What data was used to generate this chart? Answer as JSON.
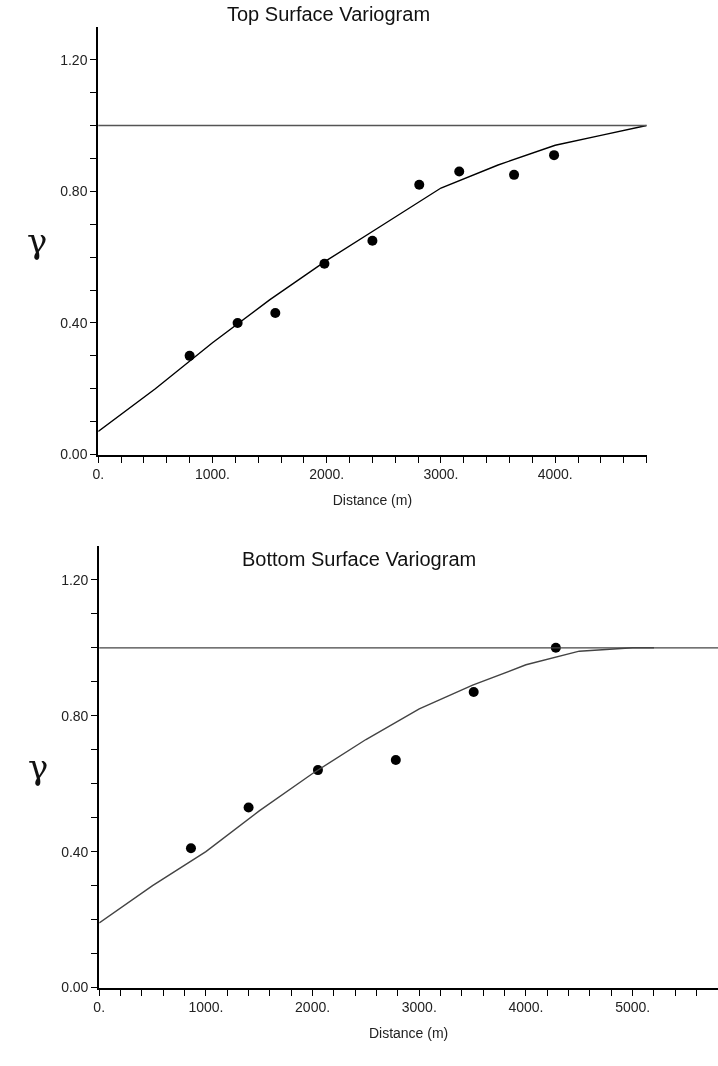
{
  "chart_data": [
    {
      "type": "scatter",
      "title": "Top Surface Variogram",
      "xlabel": "Distance (m)",
      "ylabel": "γ",
      "series": [
        {
          "color": "#000000",
          "marker": "circle",
          "x": [
            800,
            1220,
            1550,
            1980,
            2400,
            2810,
            3160,
            3640,
            3990
          ],
          "values": [
            0.3,
            0.4,
            0.43,
            0.58,
            0.65,
            0.82,
            0.86,
            0.85,
            0.91
          ]
        },
        {
          "type": "line",
          "color": "#000000",
          "marker": "none",
          "line_style": "solid",
          "x": [
            0,
            500,
            1000,
            1500,
            2000,
            2500,
            3000,
            3500,
            4000,
            4400,
            4800
          ],
          "values": [
            0.07,
            0.2,
            0.34,
            0.47,
            0.59,
            0.7,
            0.81,
            0.88,
            0.94,
            0.97,
            1.0
          ]
        }
      ],
      "ref_lines": [
        {
          "axis": "y",
          "value": 1.0,
          "color": "#555555"
        }
      ],
      "xlim": [
        0,
        4800
      ],
      "ylim": [
        0,
        1.3
      ],
      "xticks": [
        {
          "value": 0,
          "label": "0."
        },
        {
          "value": 200,
          "label": null
        },
        {
          "value": 400,
          "label": null
        },
        {
          "value": 600,
          "label": null
        },
        {
          "value": 800,
          "label": null
        },
        {
          "value": 1000,
          "label": "1000."
        },
        {
          "value": 1200,
          "label": null
        },
        {
          "value": 1400,
          "label": null
        },
        {
          "value": 1600,
          "label": null
        },
        {
          "value": 1800,
          "label": null
        },
        {
          "value": 2000,
          "label": "2000."
        },
        {
          "value": 2200,
          "label": null
        },
        {
          "value": 2400,
          "label": null
        },
        {
          "value": 2600,
          "label": null
        },
        {
          "value": 2800,
          "label": null
        },
        {
          "value": 3000,
          "label": "3000."
        },
        {
          "value": 3200,
          "label": null
        },
        {
          "value": 3400,
          "label": null
        },
        {
          "value": 3600,
          "label": null
        },
        {
          "value": 3800,
          "label": null
        },
        {
          "value": 4000,
          "label": "4000."
        },
        {
          "value": 4200,
          "label": null
        },
        {
          "value": 4400,
          "label": null
        },
        {
          "value": 4600,
          "label": null
        },
        {
          "value": 4800,
          "label": null
        }
      ],
      "yticks": [
        {
          "value": 0,
          "label": "0.00"
        },
        {
          "value": 0.1,
          "label": null
        },
        {
          "value": 0.2,
          "label": null
        },
        {
          "value": 0.3,
          "label": null
        },
        {
          "value": 0.4,
          "label": "0.40"
        },
        {
          "value": 0.5,
          "label": null
        },
        {
          "value": 0.6,
          "label": null
        },
        {
          "value": 0.7,
          "label": null
        },
        {
          "value": 0.8,
          "label": "0.80"
        },
        {
          "value": 0.9,
          "label": null
        },
        {
          "value": 1.0,
          "label": null
        },
        {
          "value": 1.1,
          "label": null
        },
        {
          "value": 1.2,
          "label": "1.20"
        }
      ]
    },
    {
      "type": "scatter",
      "title": "Bottom Surface Variogram",
      "xlabel": "Distance (m)",
      "ylabel": "γ",
      "series": [
        {
          "color": "#000000",
          "marker": "circle",
          "x": [
            860,
            1400,
            2050,
            2780,
            3510,
            4280
          ],
          "values": [
            0.41,
            0.53,
            0.64,
            0.67,
            0.87,
            1.0
          ]
        },
        {
          "type": "line",
          "color": "#444444",
          "marker": "none",
          "line_style": "solid",
          "x": [
            0,
            500,
            1000,
            1500,
            2000,
            2500,
            3000,
            3500,
            4000,
            4500,
            5000,
            5200
          ],
          "values": [
            0.19,
            0.3,
            0.4,
            0.52,
            0.63,
            0.73,
            0.82,
            0.89,
            0.95,
            0.99,
            1.0,
            1.0
          ]
        }
      ],
      "ref_lines": [
        {
          "axis": "y",
          "value": 1.0,
          "color": "#444444"
        }
      ],
      "xlim": [
        0,
        5800
      ],
      "ylim": [
        0,
        1.3
      ],
      "xticks": [
        {
          "value": 0,
          "label": "0."
        },
        {
          "value": 200,
          "label": null
        },
        {
          "value": 400,
          "label": null
        },
        {
          "value": 600,
          "label": null
        },
        {
          "value": 800,
          "label": null
        },
        {
          "value": 1000,
          "label": "1000."
        },
        {
          "value": 1200,
          "label": null
        },
        {
          "value": 1400,
          "label": null
        },
        {
          "value": 1600,
          "label": null
        },
        {
          "value": 1800,
          "label": null
        },
        {
          "value": 2000,
          "label": "2000."
        },
        {
          "value": 2200,
          "label": null
        },
        {
          "value": 2400,
          "label": null
        },
        {
          "value": 2600,
          "label": null
        },
        {
          "value": 2800,
          "label": null
        },
        {
          "value": 3000,
          "label": "3000."
        },
        {
          "value": 3200,
          "label": null
        },
        {
          "value": 3400,
          "label": null
        },
        {
          "value": 3600,
          "label": null
        },
        {
          "value": 3800,
          "label": null
        },
        {
          "value": 4000,
          "label": "4000."
        },
        {
          "value": 4200,
          "label": null
        },
        {
          "value": 4400,
          "label": null
        },
        {
          "value": 4600,
          "label": null
        },
        {
          "value": 4800,
          "label": null
        },
        {
          "value": 5000,
          "label": "5000."
        },
        {
          "value": 5200,
          "label": null
        },
        {
          "value": 5400,
          "label": null
        },
        {
          "value": 5600,
          "label": null
        },
        {
          "value": 5800,
          "label": null
        }
      ],
      "yticks": [
        {
          "value": 0,
          "label": "0.00"
        },
        {
          "value": 0.1,
          "label": null
        },
        {
          "value": 0.2,
          "label": null
        },
        {
          "value": 0.3,
          "label": null
        },
        {
          "value": 0.4,
          "label": "0.40"
        },
        {
          "value": 0.5,
          "label": null
        },
        {
          "value": 0.6,
          "label": null
        },
        {
          "value": 0.7,
          "label": null
        },
        {
          "value": 0.8,
          "label": "0.80"
        },
        {
          "value": 0.9,
          "label": null
        },
        {
          "value": 1.0,
          "label": null
        },
        {
          "value": 1.1,
          "label": null
        },
        {
          "value": 1.2,
          "label": "1.20"
        }
      ]
    }
  ]
}
